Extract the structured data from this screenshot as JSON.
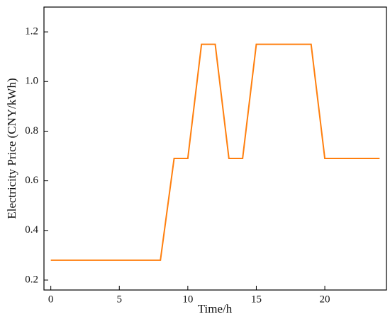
{
  "chart_data": {
    "type": "line",
    "x_label": "Time/h",
    "y_label": "Electricity Price (CNY/kWh)",
    "x": [
      0,
      1,
      2,
      3,
      4,
      5,
      6,
      7,
      8,
      9,
      10,
      11,
      12,
      13,
      14,
      15,
      16,
      17,
      18,
      19,
      20,
      21,
      22,
      23,
      24
    ],
    "series": [
      {
        "color": "#ff7f0e",
        "values": [
          0.28,
          0.28,
          0.28,
          0.28,
          0.28,
          0.28,
          0.28,
          0.28,
          0.28,
          0.69,
          0.69,
          1.15,
          1.15,
          0.69,
          0.69,
          1.15,
          1.15,
          1.15,
          1.15,
          1.15,
          0.69,
          0.69,
          0.69,
          0.69,
          0.69
        ]
      }
    ],
    "xlim": [
      -0.5,
      24.5
    ],
    "xticks": [
      0,
      5,
      10,
      15,
      20
    ],
    "ylim": [
      0.16,
      1.3
    ],
    "yticks": [
      0.2,
      0.4,
      0.6,
      0.8,
      {
        "value": 1.0,
        "label": "1.0"
      },
      1.2
    ]
  }
}
